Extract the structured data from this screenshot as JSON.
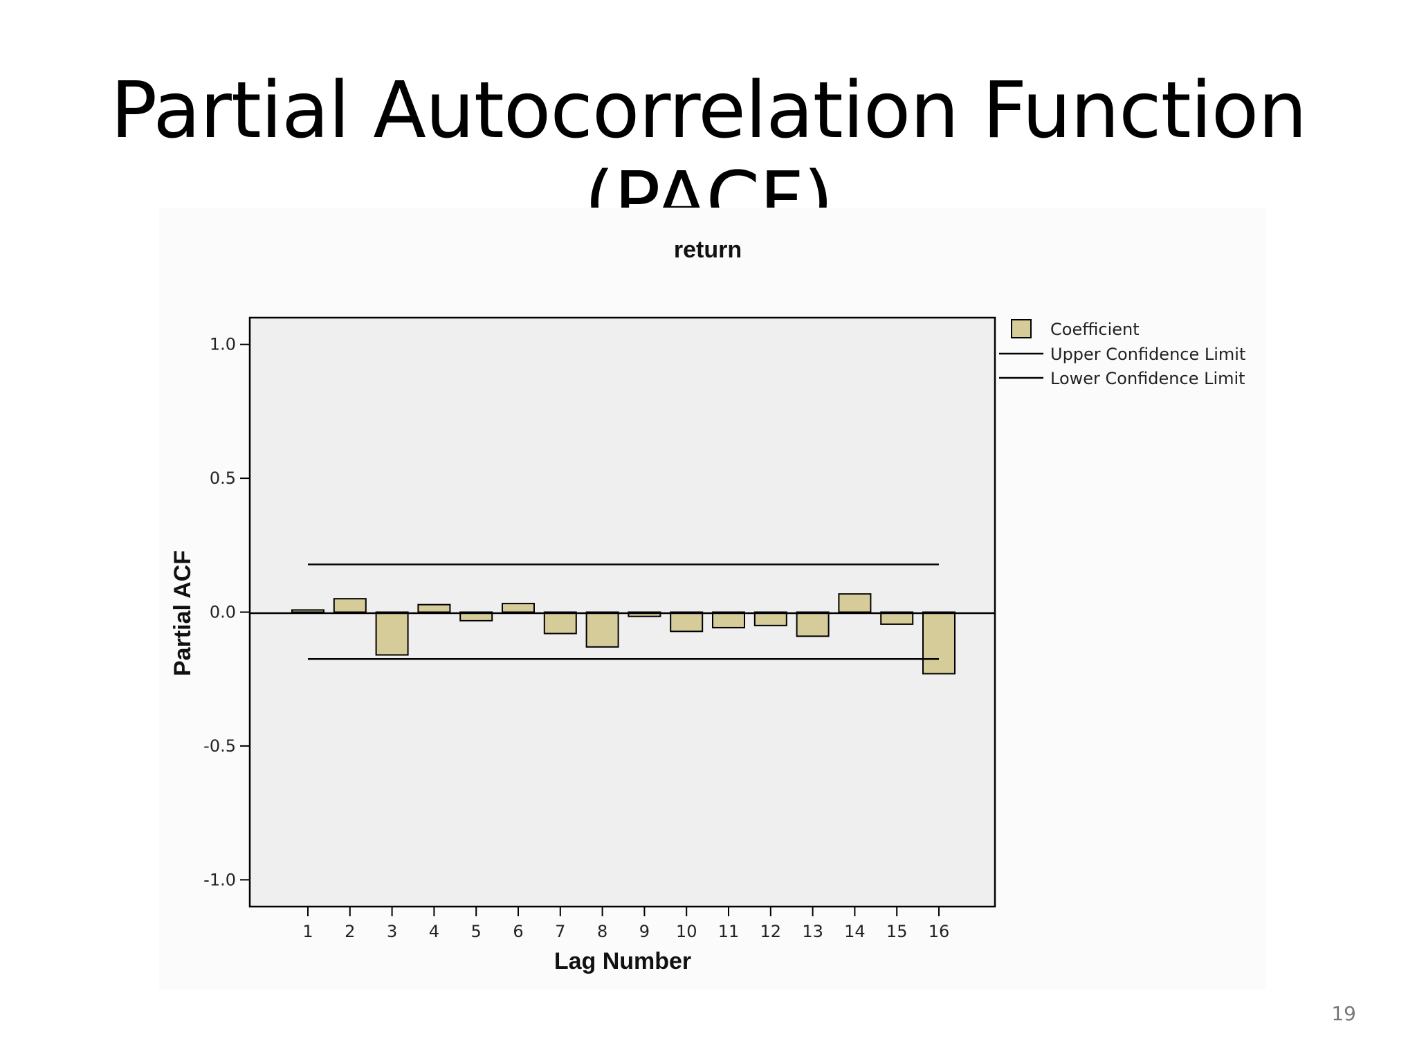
{
  "slide": {
    "title": "Partial Autocorrelation Function (PACF)",
    "page_number": "19"
  },
  "chart_data": {
    "type": "bar",
    "title": "return",
    "xlabel": "Lag Number",
    "ylabel": "Partial ACF",
    "ylim": [
      -1.1,
      1.1
    ],
    "yticks": [
      -1.0,
      -0.5,
      0.0,
      0.5,
      1.0
    ],
    "ytick_labels": [
      "-1.0",
      "-0.5",
      "0.0",
      "0.5",
      "1.0"
    ],
    "categories": [
      "1",
      "2",
      "3",
      "4",
      "5",
      "6",
      "7",
      "8",
      "9",
      "10",
      "11",
      "12",
      "13",
      "14",
      "15",
      "16"
    ],
    "series": [
      {
        "name": "Coefficient",
        "values": [
          0.008,
          0.05,
          -0.16,
          0.028,
          -0.032,
          0.032,
          -0.08,
          -0.13,
          -0.016,
          -0.072,
          -0.058,
          -0.05,
          -0.09,
          0.068,
          -0.045,
          -0.23
        ]
      }
    ],
    "upper_confidence_limit": 0.178,
    "lower_confidence_limit": -0.175,
    "legend": {
      "placement": "right-top",
      "items": [
        "Coefficient",
        "Upper Confidence Limit",
        "Lower Confidence Limit"
      ]
    },
    "colors": {
      "bar_fill": "#d6cc9a",
      "bar_stroke": "#000000",
      "plot_background": "#efefef",
      "line": "#000000"
    },
    "grid": false
  }
}
